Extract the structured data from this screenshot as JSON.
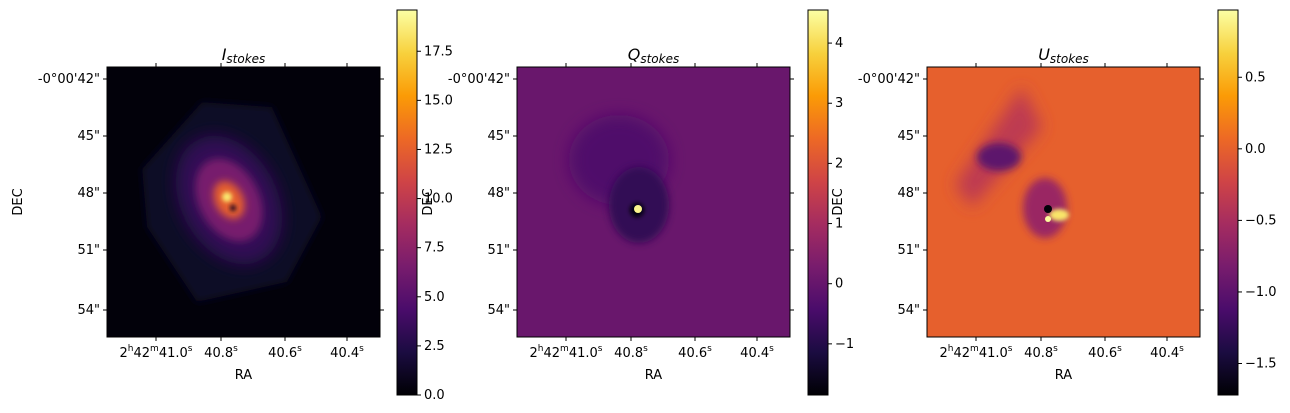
{
  "colors": {
    "colormap": "inferno",
    "stops": [
      "#000004",
      "#1b0c41",
      "#4a0c6b",
      "#781c6d",
      "#a52c60",
      "#cf4446",
      "#ed6925",
      "#fb9b06",
      "#f7d13d",
      "#fcffa4"
    ]
  },
  "chart_data": [
    {
      "type": "heatmap",
      "title_base": "I",
      "title_sub": "stokes",
      "xlabel": "RA",
      "ylabel": "DEC",
      "x_ticks": [
        {
          "h": "2",
          "m": "42",
          "s": "41.0",
          "sup": "s"
        },
        {
          "s": "40.8",
          "sup": "s"
        },
        {
          "s": "40.6",
          "sup": "s"
        },
        {
          "s": "40.4",
          "sup": "s"
        }
      ],
      "y_ticks": [
        "-0°00'42\"",
        "45\"",
        "48\"",
        "51\"",
        "54\""
      ],
      "colorbar": {
        "range": [
          0,
          19.6
        ],
        "ticks": [
          0.0,
          2.5,
          5.0,
          7.5,
          10.0,
          12.5,
          15.0,
          17.5
        ],
        "tick_labels": [
          "0.0",
          "2.5",
          "5.0",
          "7.5",
          "10.0",
          "12.5",
          "15.0",
          "17.5"
        ]
      },
      "background_value": 0.2,
      "footprint_value": 1.2
    },
    {
      "type": "heatmap",
      "title_base": "Q",
      "title_sub": "stokes",
      "xlabel": "RA",
      "ylabel": "DEC",
      "x_ticks": [
        {
          "h": "2",
          "m": "42",
          "s": "41.0",
          "sup": "s"
        },
        {
          "s": "40.8",
          "sup": "s"
        },
        {
          "s": "40.6",
          "sup": "s"
        },
        {
          "s": "40.4",
          "sup": "s"
        }
      ],
      "y_ticks": [
        "-0°00'42\"",
        "45\"",
        "48\"",
        "51\"",
        "54\""
      ],
      "colorbar": {
        "range": [
          -1.85,
          4.55
        ],
        "ticks": [
          -1,
          0,
          1,
          2,
          3,
          4
        ],
        "tick_labels": [
          "−1",
          "0",
          "1",
          "2",
          "3",
          "4"
        ]
      },
      "background_value": 0.05
    },
    {
      "type": "heatmap",
      "title_base": "U",
      "title_sub": "stokes",
      "xlabel": "RA",
      "ylabel": "DEC",
      "x_ticks": [
        {
          "h": "2",
          "m": "42",
          "s": "41.0",
          "sup": "s"
        },
        {
          "s": "40.8",
          "sup": "s"
        },
        {
          "s": "40.6",
          "sup": "s"
        },
        {
          "s": "40.4",
          "sup": "s"
        }
      ],
      "y_ticks": [
        "-0°00'42\"",
        "45\"",
        "48\"",
        "51\"",
        "54\""
      ],
      "colorbar": {
        "range": [
          -1.72,
          0.97
        ],
        "ticks": [
          0.5,
          0.0,
          -0.5,
          -1.0,
          -1.5
        ],
        "tick_labels": [
          "0.5",
          "0.0",
          "−0.5",
          "−1.0",
          "−1.5"
        ]
      },
      "background_value": 0.0
    }
  ]
}
